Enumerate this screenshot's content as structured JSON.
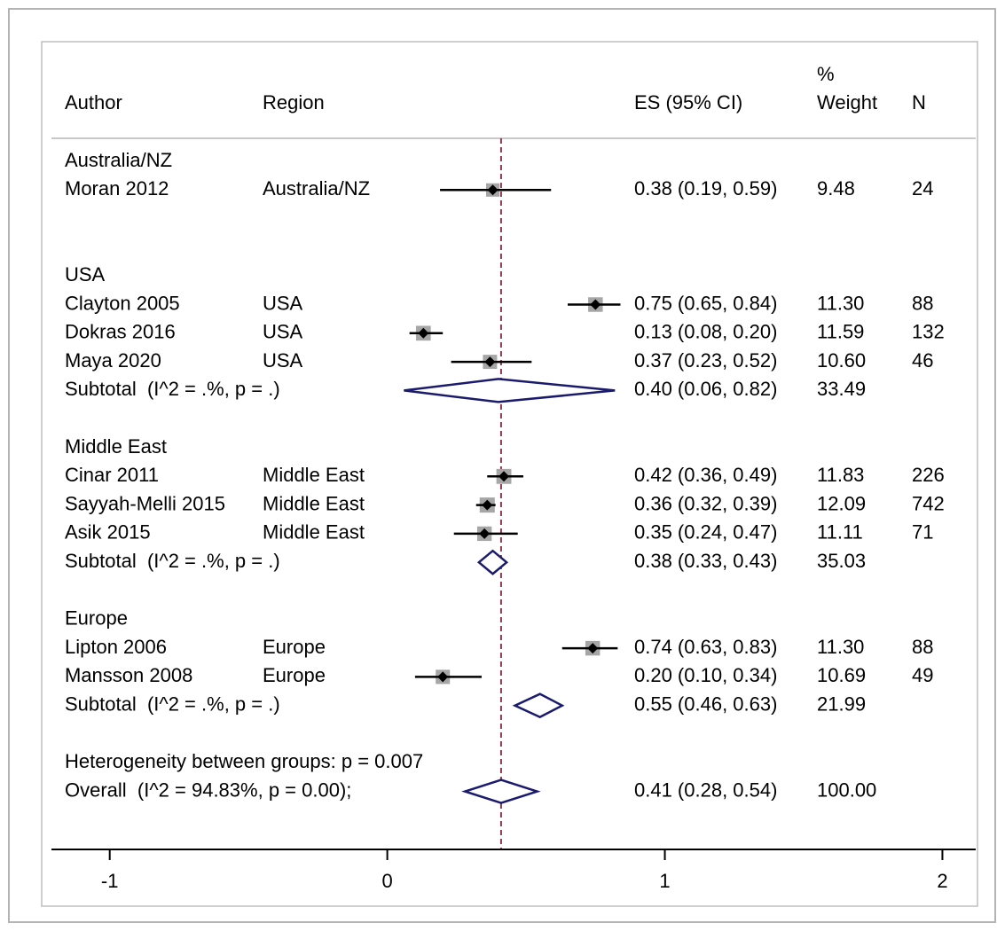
{
  "chart_data": {
    "type": "forest",
    "headers": {
      "author": "Author",
      "region": "Region",
      "es": "ES (95% CI)",
      "weight": [
        "%",
        "Weight"
      ],
      "n": "N"
    },
    "xlim": [
      -1.21,
      2.12
    ],
    "xticks": [
      -1,
      0,
      1,
      2
    ],
    "ci_color": "#000000",
    "point_color": "#000000",
    "box_color": "#a6a6a6",
    "diamond_color": "#1a1a6e",
    "ref_line_color": "#8b3a4a",
    "rows": [
      {
        "kind": "group",
        "label": "Australia/NZ"
      },
      {
        "kind": "study",
        "author": "Moran 2012",
        "region": "Australia/NZ",
        "es": 0.38,
        "lo": 0.19,
        "hi": 0.59,
        "es_label": "0.38 (0.19, 0.59)",
        "weight": 9.48,
        "n": 24
      },
      {
        "kind": "group",
        "label": "USA"
      },
      {
        "kind": "study",
        "author": "Clayton 2005",
        "region": "USA",
        "es": 0.75,
        "lo": 0.65,
        "hi": 0.84,
        "es_label": "0.75 (0.65, 0.84)",
        "weight": 11.3,
        "weight_label": "11.30",
        "n": 88
      },
      {
        "kind": "study",
        "author": "Dokras 2016",
        "region": "USA",
        "es": 0.13,
        "lo": 0.08,
        "hi": 0.2,
        "es_label": "0.13 (0.08, 0.20)",
        "weight": 11.59,
        "n": 132
      },
      {
        "kind": "study",
        "author": "Maya 2020",
        "region": "USA",
        "es": 0.37,
        "lo": 0.23,
        "hi": 0.52,
        "es_label": "0.37 (0.23, 0.52)",
        "weight": 10.6,
        "weight_label": "10.60",
        "n": 46
      },
      {
        "kind": "subtotal",
        "label": "Subtotal  (I^2 = .%, p = .)",
        "es": 0.4,
        "lo": 0.06,
        "hi": 0.82,
        "es_label": "0.40 (0.06, 0.82)",
        "weight": 33.49
      },
      {
        "kind": "group",
        "label": "Middle East"
      },
      {
        "kind": "study",
        "author": "Cinar 2011",
        "region": "Middle East",
        "es": 0.42,
        "lo": 0.36,
        "hi": 0.49,
        "es_label": "0.42 (0.36, 0.49)",
        "weight": 11.83,
        "n": 226
      },
      {
        "kind": "study",
        "author": "Sayyah-Melli 2015",
        "region": "Middle East",
        "es": 0.36,
        "lo": 0.32,
        "hi": 0.39,
        "es_label": "0.36 (0.32, 0.39)",
        "weight": 12.09,
        "n": 742
      },
      {
        "kind": "study",
        "author": "Asik 2015",
        "region": "Middle East",
        "es": 0.35,
        "lo": 0.24,
        "hi": 0.47,
        "es_label": "0.35 (0.24, 0.47)",
        "weight": 11.11,
        "n": 71
      },
      {
        "kind": "subtotal",
        "label": "Subtotal  (I^2 = .%, p = .)",
        "es": 0.38,
        "lo": 0.33,
        "hi": 0.43,
        "es_label": "0.38 (0.33, 0.43)",
        "weight": 35.03
      },
      {
        "kind": "group",
        "label": "Europe"
      },
      {
        "kind": "study",
        "author": "Lipton 2006",
        "region": "Europe",
        "es": 0.74,
        "lo": 0.63,
        "hi": 0.83,
        "es_label": "0.74 (0.63, 0.83)",
        "weight": 11.3,
        "weight_label": "11.30",
        "n": 88
      },
      {
        "kind": "study",
        "author": "Mansson 2008",
        "region": "Europe",
        "es": 0.2,
        "lo": 0.1,
        "hi": 0.34,
        "es_label": "0.20 (0.10, 0.34)",
        "weight": 10.69,
        "n": 49
      },
      {
        "kind": "subtotal",
        "label": "Subtotal  (I^2 = .%, p = .)",
        "es": 0.55,
        "lo": 0.46,
        "hi": 0.63,
        "es_label": "0.55 (0.46, 0.63)",
        "weight": 21.99
      },
      {
        "kind": "note",
        "label": "Heterogeneity between groups: p = 0.007"
      },
      {
        "kind": "overall",
        "label": "Overall  (I^2 = 94.83%, p = 0.00);",
        "es": 0.41,
        "lo": 0.28,
        "hi": 0.54,
        "es_label": "0.41 (0.28, 0.54)",
        "weight": 100,
        "weight_label": "100.00"
      }
    ]
  }
}
